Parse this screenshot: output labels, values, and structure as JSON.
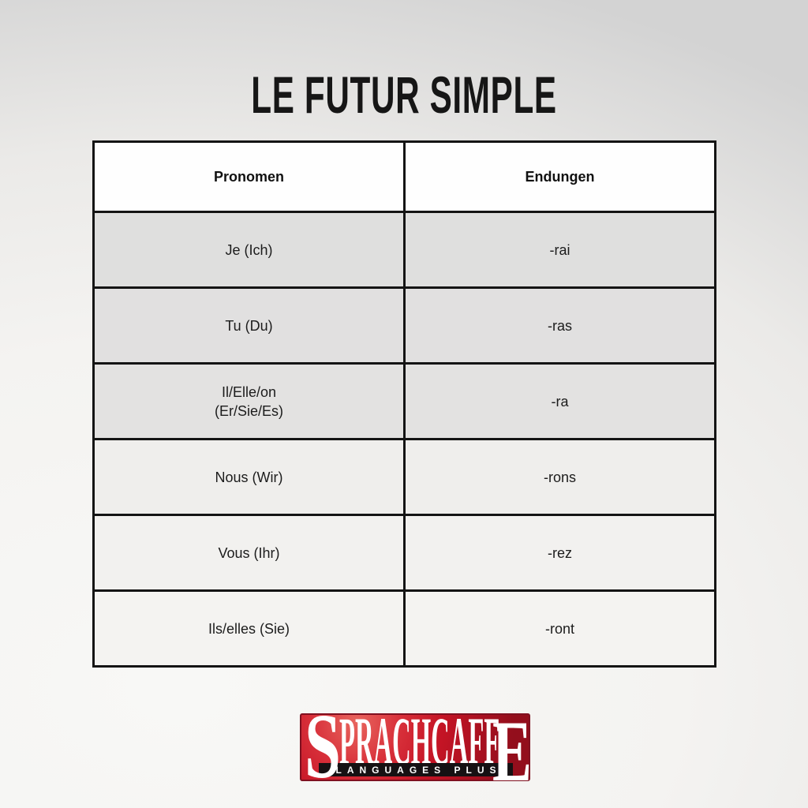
{
  "title": "LE FUTUR SIMPLE",
  "table": {
    "headers": [
      "Pronomen",
      "Endungen"
    ],
    "rows": [
      {
        "pronoun": "Je (Ich)",
        "ending": "-rai"
      },
      {
        "pronoun": "Tu (Du)",
        "ending": "-ras"
      },
      {
        "pronoun": "Il/Elle/on\n(Er/Sie/Es)",
        "ending": "-ra"
      },
      {
        "pronoun": "Nous (Wir)",
        "ending": "-rons"
      },
      {
        "pronoun": "Vous (Ihr)",
        "ending": "-rez"
      },
      {
        "pronoun": "Ils/elles (Sie)",
        "ending": "-ront"
      }
    ]
  },
  "logo": {
    "brand_first_letter": "S",
    "brand_middle": "PRACHCAFF",
    "brand_last_letter": "E",
    "subtitle": "LANGUAGES PLUS"
  },
  "colors": {
    "background-top": "#d3d3d3",
    "background-light": "#f8f8f6",
    "table-border": "#141414",
    "header-bg": "#fefefe",
    "row-bg-1": "#dfdfde",
    "row-bg-2": "#e1e0e0",
    "row-bg-3": "#e3e2e1",
    "row-bg-4": "#efeeec",
    "row-bg-5": "#f2f1ef",
    "row-bg-6": "#f4f3f1",
    "text-dark": "#1c1c1c",
    "brand-red": "#c41425",
    "brand-red-highlight": "#e8655e",
    "brand-red-dark": "#930e1c",
    "logo-bar": "#161113",
    "logo-text": "#ffffff"
  }
}
